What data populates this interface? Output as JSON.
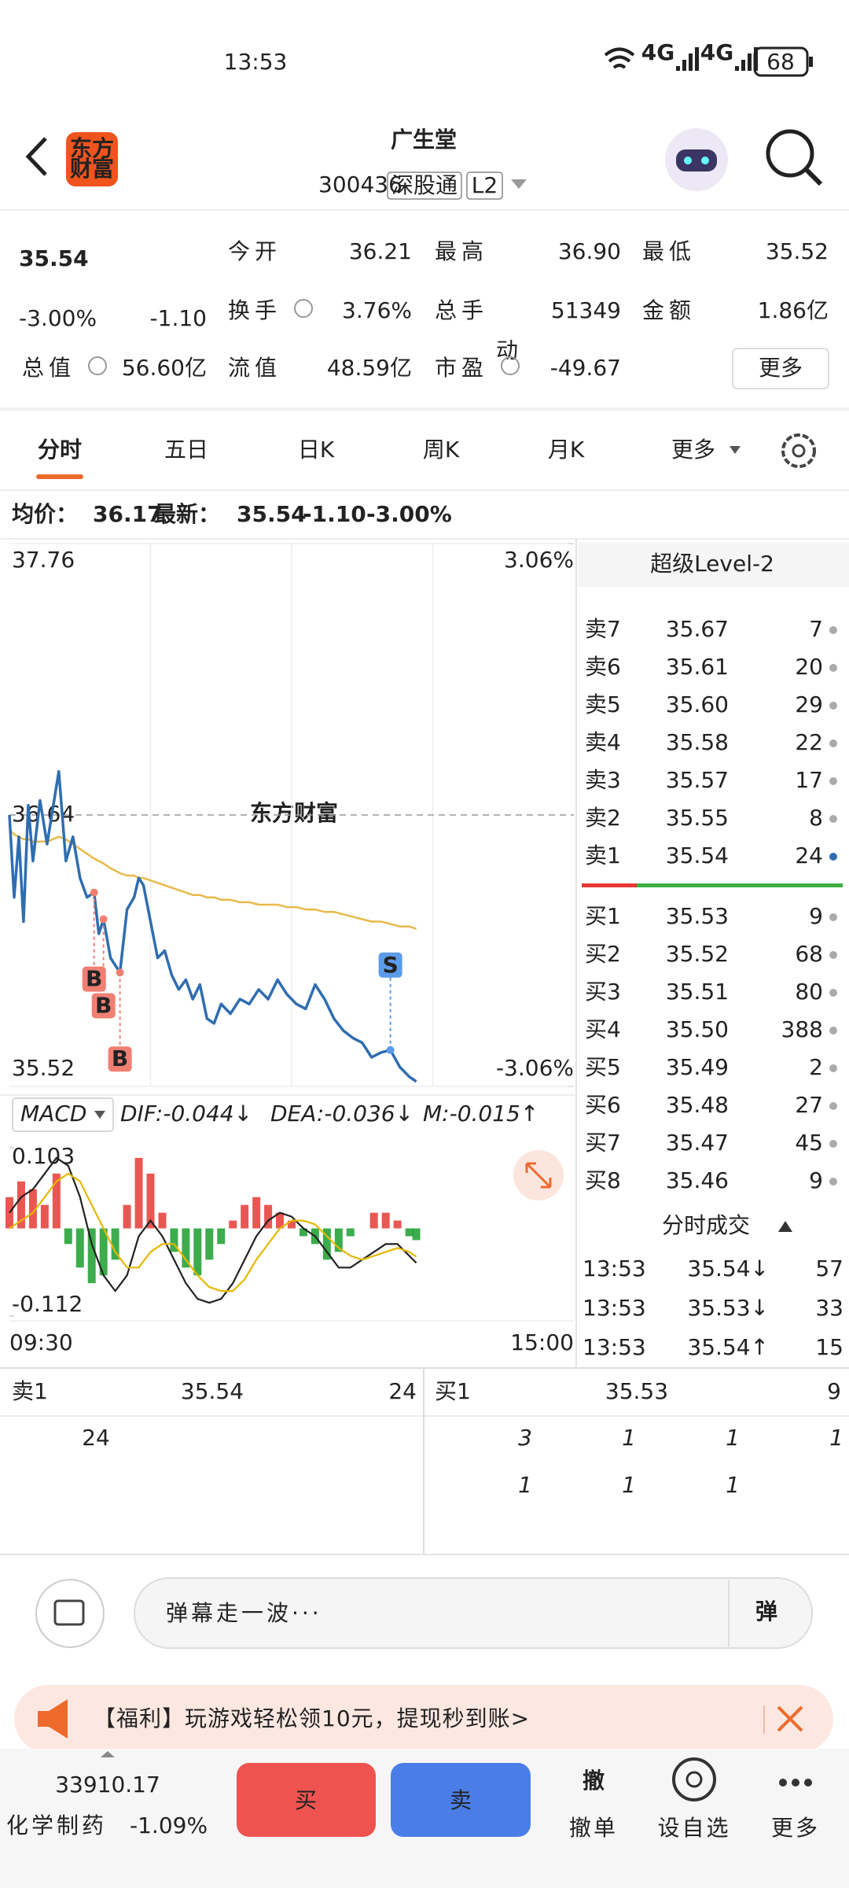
{
  "status_bar": {
    "time": "13:53",
    "network": [
      "4G",
      "4G"
    ],
    "battery": "68"
  },
  "header": {
    "logo": [
      "东方",
      "财富"
    ],
    "title": "广生堂",
    "code": "300436",
    "tags": [
      "深股通",
      "L2"
    ]
  },
  "quote": {
    "price": "35.54",
    "change_pct": "-3.00%",
    "change": "-1.10",
    "fields": [
      {
        "label": "今开",
        "value": "36.21"
      },
      {
        "label": "最高",
        "value": "36.90"
      },
      {
        "label": "最低",
        "value": "35.52"
      },
      {
        "label": "换手",
        "value": "3.76%"
      },
      {
        "label": "总手",
        "value": "51349"
      },
      {
        "label": "金额",
        "value": "1.86亿"
      },
      {
        "label": "总值",
        "value": "56.60亿"
      },
      {
        "label": "流值",
        "value": "48.59亿"
      },
      {
        "label": "市盈",
        "superscript": "动",
        "value": "-49.67"
      }
    ],
    "more": "更多"
  },
  "tabs": [
    "分时",
    "五日",
    "日K",
    "周K",
    "月K",
    "更多"
  ],
  "info_line": {
    "avg_label": "均价：",
    "avg": "36.17",
    "latest_label": "最新：",
    "latest": "35.54",
    "change": "-1.10",
    "change_pct": "-3.00%"
  },
  "chart_data": [
    {
      "type": "line",
      "watermark": "东方财富",
      "x": [
        "09:30",
        "09:32",
        "09:34",
        "09:36",
        "09:38",
        "09:40",
        "09:43",
        "09:46",
        "09:51",
        "09:54",
        "09:57",
        "10:00",
        "10:03",
        "10:06",
        "10:08",
        "10:10",
        "10:13",
        "10:15",
        "10:17",
        "10:20",
        "10:23",
        "10:25",
        "10:27",
        "10:30",
        "10:33",
        "10:36",
        "10:39",
        "10:42",
        "10:45",
        "10:48",
        "10:51",
        "10:54",
        "10:57",
        "11:00",
        "11:04",
        "11:08",
        "11:12",
        "11:16",
        "11:20",
        "11:24",
        "11:28",
        "13:02",
        "13:06",
        "13:10",
        "13:14",
        "13:18",
        "13:22",
        "13:26",
        "13:30",
        "13:34",
        "13:38",
        "13:42",
        "13:46",
        "13:50",
        "13:53"
      ],
      "xlim": [
        "09:30",
        "15:00"
      ],
      "ylim": [
        35.52,
        37.76
      ],
      "yticks": [
        35.52,
        36.64,
        37.76
      ],
      "y2lim": [
        -3.06,
        3.06
      ],
      "y2ticks": [
        {
          "value": -3.06,
          "label": "-3.06%"
        },
        {
          "value": 3.06,
          "label": "3.06%"
        }
      ],
      "series": [
        {
          "color": "#2f6db0",
          "values": [
            36.64,
            36.3,
            36.55,
            36.2,
            36.68,
            36.45,
            36.7,
            36.52,
            36.82,
            36.45,
            36.55,
            36.38,
            36.3,
            36.32,
            36.15,
            36.21,
            36.05,
            36.02,
            35.99,
            36.25,
            36.3,
            36.38,
            36.35,
            36.2,
            36.05,
            36.08,
            35.98,
            35.92,
            35.96,
            35.88,
            35.94,
            35.8,
            35.78,
            35.86,
            35.82,
            35.88,
            35.86,
            35.92,
            35.88,
            35.96,
            35.9,
            35.86,
            35.84,
            35.94,
            35.88,
            35.8,
            35.75,
            35.72,
            35.7,
            35.64,
            35.66,
            35.67,
            35.6,
            35.56,
            35.54
          ]
        },
        {
          "color": "#e9b949",
          "values": [
            36.58,
            36.56,
            36.55,
            36.54,
            36.54,
            36.53,
            36.53,
            36.53,
            36.55,
            36.54,
            36.52,
            36.5,
            36.48,
            36.46,
            36.45,
            36.44,
            36.42,
            36.41,
            36.4,
            36.39,
            36.39,
            36.38,
            36.38,
            36.37,
            36.36,
            36.35,
            36.34,
            36.33,
            36.32,
            36.31,
            36.31,
            36.3,
            36.3,
            36.29,
            36.29,
            36.28,
            36.28,
            36.27,
            36.27,
            36.27,
            36.26,
            36.26,
            36.25,
            36.25,
            36.24,
            36.24,
            36.23,
            36.22,
            36.21,
            36.2,
            36.2,
            36.19,
            36.18,
            36.18,
            36.17
          ]
        }
      ],
      "markers": [
        {
          "x": "10:06",
          "value": 36.32,
          "label": "B",
          "color": "#f07f73"
        },
        {
          "x": "10:10",
          "value": 36.21,
          "label": "B",
          "color": "#f07f73"
        },
        {
          "x": "10:17",
          "value": 35.99,
          "label": "B",
          "color": "#f07f73"
        },
        {
          "x": "13:42",
          "value": 35.67,
          "label": "S",
          "color": "#5b9be8"
        }
      ]
    },
    {
      "type": "macd",
      "title": "MACD",
      "indicators": [
        "DIF:-0.044↓",
        "DEA:-0.036↓",
        "M:-0.015↑"
      ],
      "x": [
        "09:30",
        "09:35",
        "09:40",
        "09:45",
        "09:50",
        "09:55",
        "10:00",
        "10:05",
        "10:10",
        "10:15",
        "10:20",
        "10:25",
        "10:30",
        "10:35",
        "10:40",
        "10:45",
        "10:50",
        "10:55",
        "11:00",
        "11:05",
        "11:10",
        "11:15",
        "11:20",
        "11:25",
        "11:30",
        "13:05",
        "13:10",
        "13:15",
        "13:20",
        "13:25",
        "13:30",
        "13:35",
        "13:40",
        "13:45",
        "13:50",
        "13:53"
      ],
      "xlim": [
        "09:30",
        "15:00"
      ],
      "xticks": [
        "09:30",
        "15:00"
      ],
      "ylim": [
        -0.112,
        0.103
      ],
      "yticks": [
        -0.112,
        0.103
      ],
      "series": [
        {
          "colors": [
            "#e53935",
            "#1a9e2e"
          ],
          "values": [
            0.04,
            0.06,
            0.05,
            0.03,
            0.07,
            -0.02,
            -0.05,
            -0.07,
            -0.06,
            -0.04,
            0.03,
            0.09,
            0.07,
            0.02,
            -0.03,
            -0.05,
            -0.06,
            -0.04,
            -0.02,
            0.01,
            0.03,
            0.04,
            0.03,
            0.02,
            0.01,
            -0.01,
            -0.02,
            -0.04,
            -0.03,
            -0.01,
            0,
            0.02,
            0.02,
            0.01,
            -0.01,
            -0.015
          ]
        },
        {
          "color": "#222222",
          "values": [
            0.02,
            0.04,
            0.05,
            0.07,
            0.09,
            0.08,
            0.04,
            -0.02,
            -0.06,
            -0.08,
            -0.06,
            -0.01,
            0.01,
            -0.01,
            -0.04,
            -0.07,
            -0.09,
            -0.095,
            -0.09,
            -0.07,
            -0.04,
            -0.01,
            0.01,
            0.02,
            0.015,
            0,
            -0.01,
            -0.03,
            -0.05,
            -0.05,
            -0.04,
            -0.03,
            -0.02,
            -0.02,
            -0.035,
            -0.044
          ]
        },
        {
          "color": "#e6b800",
          "values": [
            0,
            0.01,
            0.02,
            0.04,
            0.06,
            0.07,
            0.06,
            0.03,
            0,
            -0.03,
            -0.05,
            -0.05,
            -0.03,
            -0.02,
            -0.02,
            -0.04,
            -0.06,
            -0.075,
            -0.08,
            -0.08,
            -0.065,
            -0.04,
            -0.02,
            0,
            0.01,
            0.01,
            0.005,
            -0.01,
            -0.025,
            -0.035,
            -0.04,
            -0.035,
            -0.03,
            -0.025,
            -0.03,
            -0.036
          ]
        }
      ]
    }
  ],
  "order_book": {
    "title": "超级Level-2",
    "asks": [
      {
        "label": "卖7",
        "price": "35.67",
        "volume": "7"
      },
      {
        "label": "卖6",
        "price": "35.61",
        "volume": "20"
      },
      {
        "label": "卖5",
        "price": "35.60",
        "volume": "29"
      },
      {
        "label": "卖4",
        "price": "35.58",
        "volume": "22"
      },
      {
        "label": "卖3",
        "price": "35.57",
        "volume": "17"
      },
      {
        "label": "卖2",
        "price": "35.55",
        "volume": "8"
      },
      {
        "label": "卖1",
        "price": "35.54",
        "volume": "24"
      }
    ],
    "bids": [
      {
        "label": "买1",
        "price": "35.53",
        "volume": "9"
      },
      {
        "label": "买2",
        "price": "35.52",
        "volume": "68"
      },
      {
        "label": "买3",
        "price": "35.51",
        "volume": "80"
      },
      {
        "label": "买4",
        "price": "35.50",
        "volume": "388"
      },
      {
        "label": "买5",
        "price": "35.49",
        "volume": "2"
      },
      {
        "label": "买6",
        "price": "35.48",
        "volume": "27"
      },
      {
        "label": "买7",
        "price": "35.47",
        "volume": "45"
      },
      {
        "label": "买8",
        "price": "35.46",
        "volume": "9"
      }
    ]
  },
  "trades": {
    "title": "分时成交",
    "rows": [
      {
        "time": "13:53",
        "price": "35.54↓",
        "volume": "57"
      },
      {
        "time": "13:53",
        "price": "35.53↓",
        "volume": "33"
      },
      {
        "time": "13:53",
        "price": "35.54↑",
        "volume": "15"
      }
    ]
  },
  "queue": {
    "ask": {
      "label": "卖1",
      "price": "35.54",
      "volume": "24",
      "orders": [
        [
          "24"
        ]
      ]
    },
    "bid": {
      "label": "买1",
      "price": "35.53",
      "volume": "9",
      "orders": [
        [
          "3",
          "1",
          "1",
          "1"
        ],
        [
          "1",
          "1",
          "1"
        ]
      ]
    }
  },
  "comment": {
    "placeholder": "弹幕走一波···",
    "button": "弹"
  },
  "ad": {
    "text": "【福利】玩游戏轻松领10元，提现秒到账>"
  },
  "bottom_bar": {
    "index_value": "33910.17",
    "index_name": "化学制药",
    "index_change": "-1.09%",
    "buy": "买",
    "sell": "卖",
    "actions": [
      {
        "icon": "撤",
        "label": "撤单"
      },
      {
        "label": "设自选"
      },
      {
        "label": "更多"
      }
    ]
  }
}
